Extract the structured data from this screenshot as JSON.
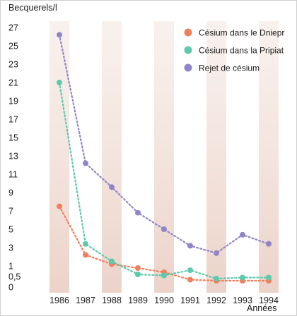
{
  "chart_data": {
    "type": "line",
    "ylabel": "Becquerels/l",
    "xlabel": "Années",
    "categories": [
      "1986",
      "1987",
      "1988",
      "1989",
      "1990",
      "1991",
      "1992",
      "1993",
      "1994"
    ],
    "ytick_labels": [
      "0",
      "0,5",
      "1",
      "3",
      "5",
      "7",
      "9",
      "11",
      "13",
      "15",
      "17",
      "19",
      "21",
      "23",
      "25",
      "27"
    ],
    "ylim": [
      0,
      27
    ],
    "grid": false,
    "legend_position": "top-right",
    "series": [
      {
        "name": "Césium dans le Dniepr",
        "color": "#f07f5c",
        "values": [
          7.5,
          2.2,
          1.2,
          0.9,
          0.7,
          0.35,
          0.3,
          0.3,
          0.3
        ]
      },
      {
        "name": "Césium dans la Pripiat",
        "color": "#5ec9ad",
        "values": [
          21,
          3.4,
          1.5,
          0.6,
          0.55,
          0.8,
          0.4,
          0.45,
          0.45
        ]
      },
      {
        "name": "Rejet de césium",
        "color": "#8f86c9",
        "values": [
          26.2,
          12.2,
          9.6,
          6.8,
          5.0,
          3.2,
          2.4,
          4.4,
          3.4
        ]
      }
    ]
  }
}
